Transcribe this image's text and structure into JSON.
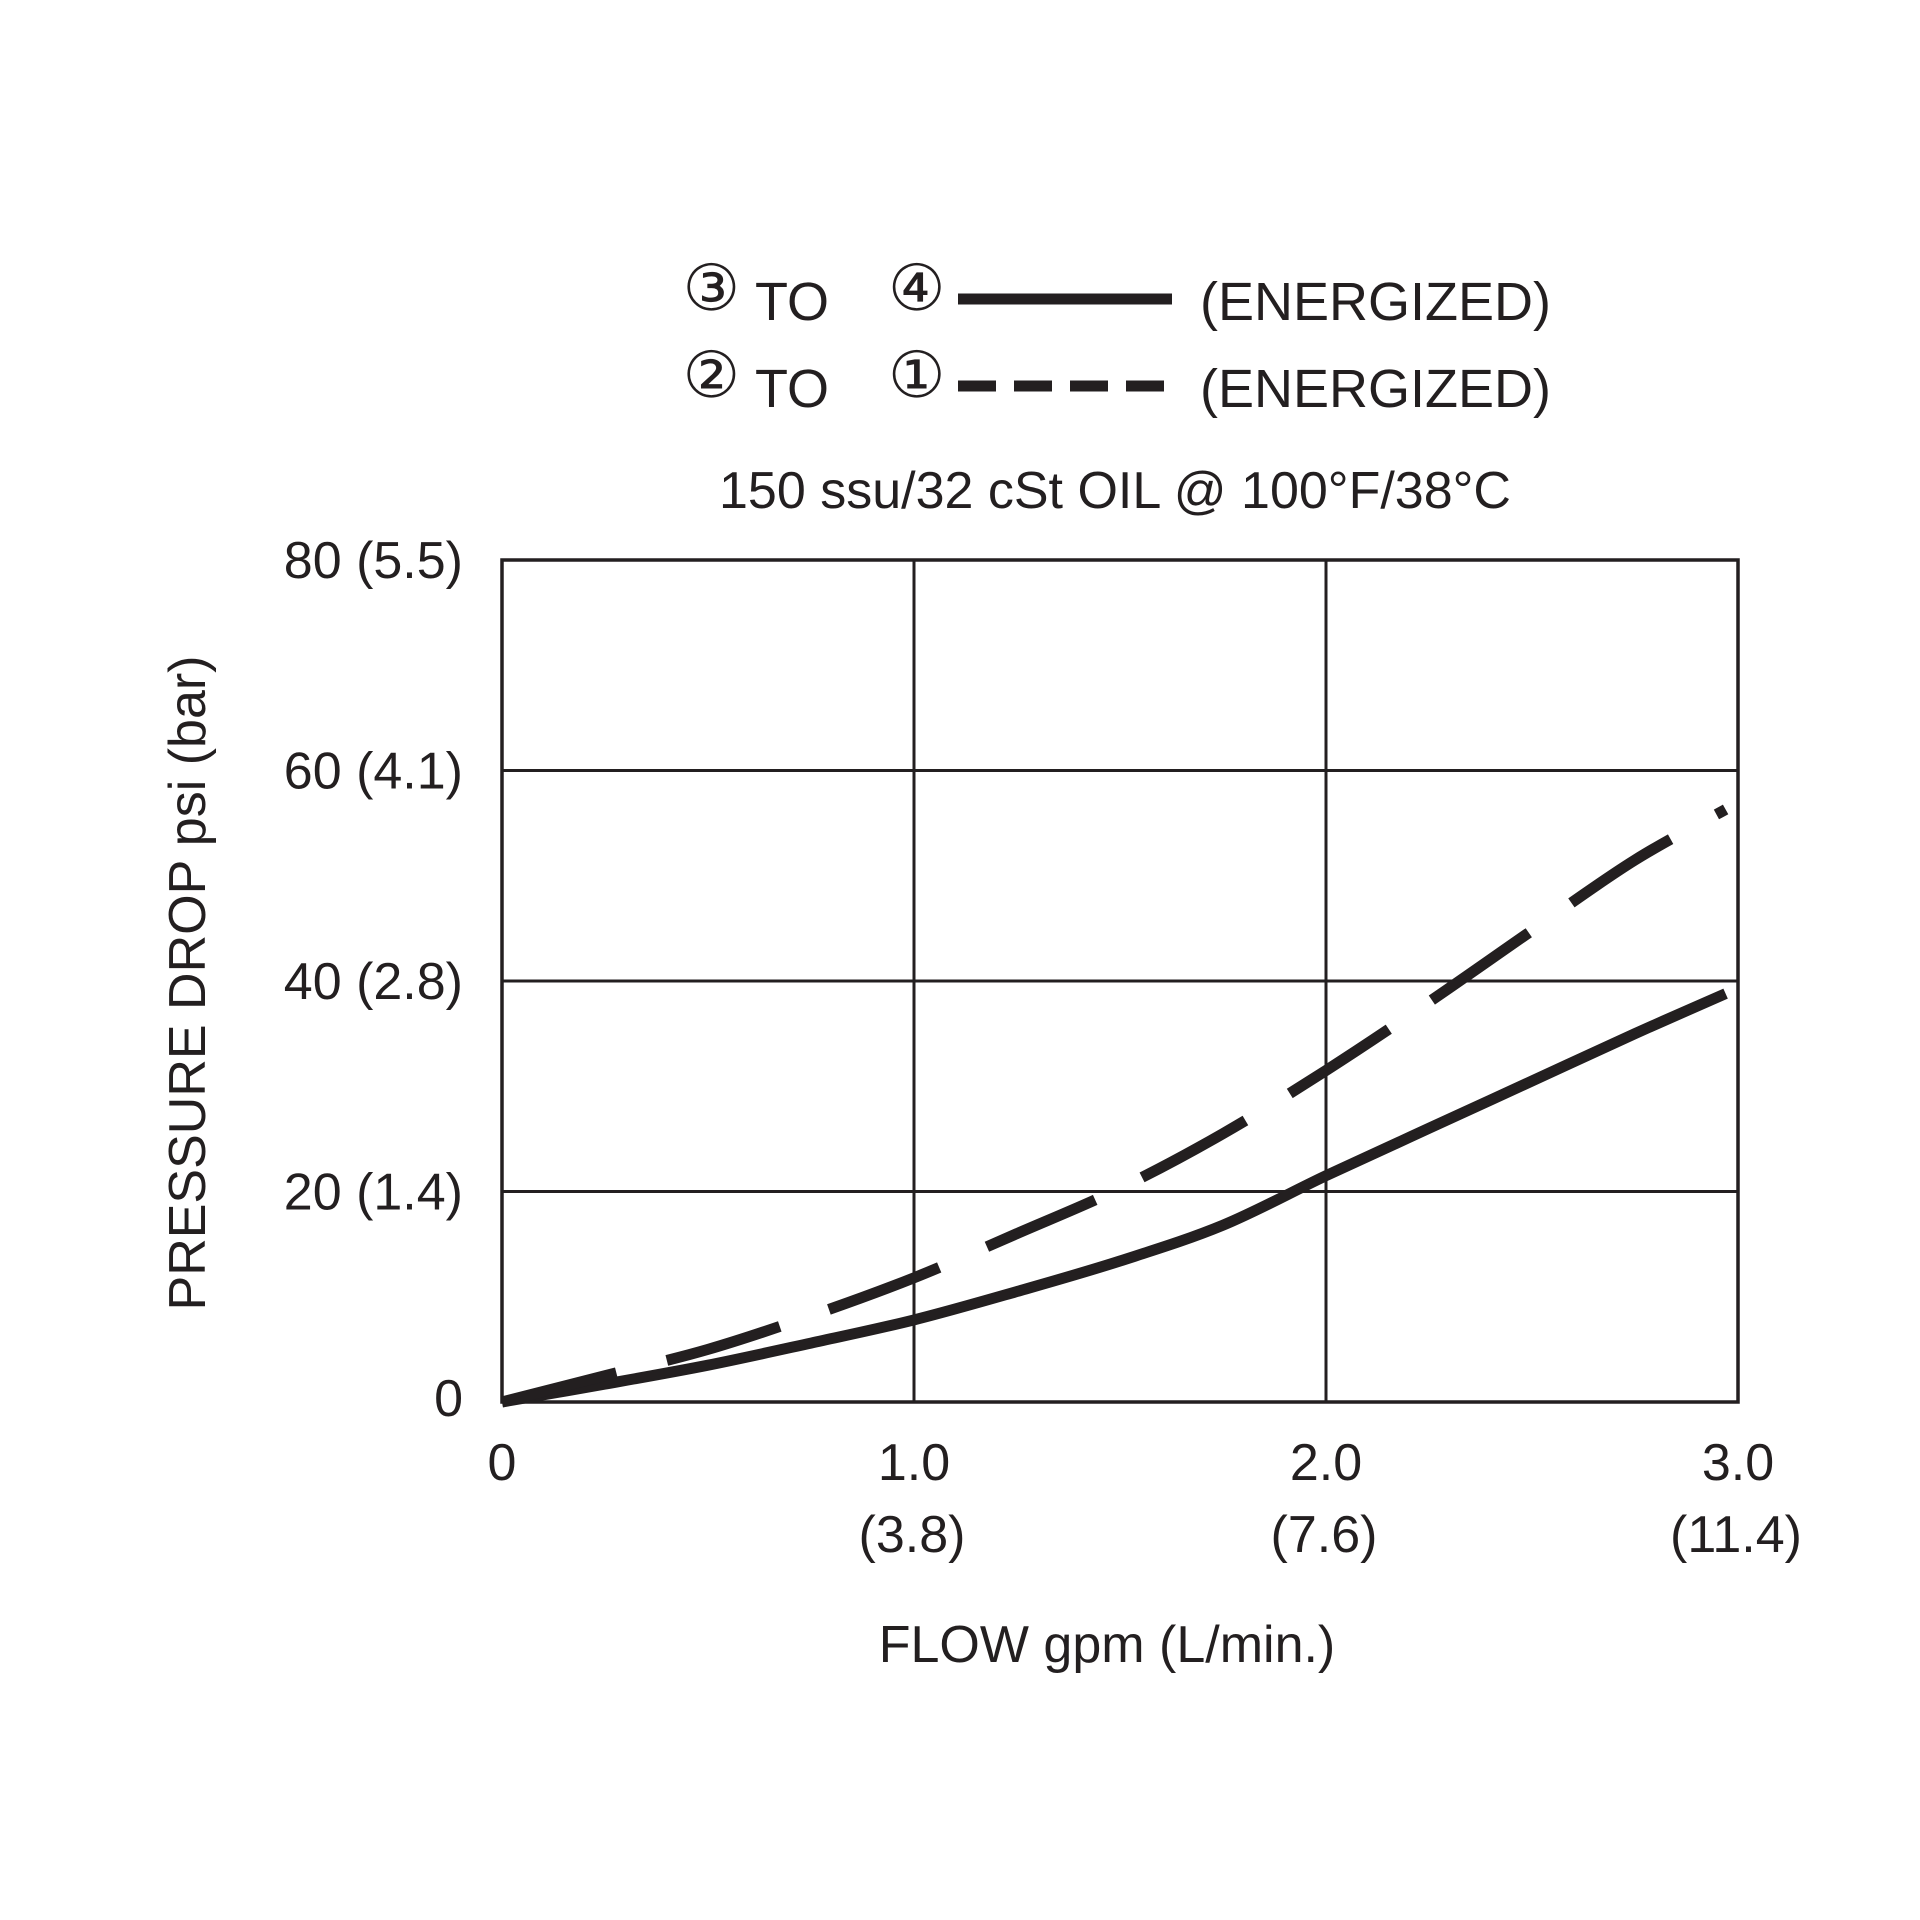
{
  "chart_data": {
    "type": "line",
    "subtitle": "150 ssu/32 cSt OIL @ 100°F/38°C",
    "xlabel": "FLOW  gpm (L/min.)",
    "ylabel": "PRESSURE DROP psi (bar)",
    "xlim": [
      0,
      3.0
    ],
    "ylim": [
      0,
      80
    ],
    "grid": true,
    "legend_position": "top",
    "x_ticks": [
      {
        "value": 0,
        "label": "0",
        "sublabel": ""
      },
      {
        "value": 1.0,
        "label": "1.0",
        "sublabel": "(3.8)"
      },
      {
        "value": 2.0,
        "label": "2.0",
        "sublabel": "(7.6)"
      },
      {
        "value": 3.0,
        "label": "3.0",
        "sublabel": "(11.4)"
      }
    ],
    "y_ticks": [
      {
        "value": 0,
        "label": "0"
      },
      {
        "value": 20,
        "label": "20 (1.4)"
      },
      {
        "value": 40,
        "label": "40 (2.8)"
      },
      {
        "value": 60,
        "label": "60 (4.1)"
      },
      {
        "value": 80,
        "label": "80 (5.5)"
      }
    ],
    "series": [
      {
        "from_port": "③",
        "to_port": "④",
        "connector": "TO",
        "state": "(ENERGIZED)",
        "style": "solid",
        "color": "#231f20",
        "x": [
          0,
          0.25,
          0.5,
          0.75,
          1.0,
          1.25,
          1.5,
          1.75,
          2.0,
          2.25,
          2.5,
          2.75,
          2.97
        ],
        "y": [
          0,
          1.7,
          3.5,
          5.6,
          7.8,
          10.5,
          13.4,
          16.8,
          21.5,
          26.0,
          30.5,
          35.0,
          38.8
        ]
      },
      {
        "from_port": "②",
        "to_port": "①",
        "connector": "TO",
        "state": "(ENERGIZED)",
        "style": "dashed",
        "color": "#231f20",
        "x": [
          0,
          0.25,
          0.5,
          0.75,
          1.0,
          1.25,
          1.5,
          1.75,
          2.0,
          2.25,
          2.5,
          2.75,
          2.97
        ],
        "y": [
          0,
          2.5,
          5.0,
          8.2,
          11.8,
          16.0,
          20.3,
          25.5,
          31.5,
          38.0,
          44.8,
          51.5,
          56.3
        ]
      }
    ]
  }
}
